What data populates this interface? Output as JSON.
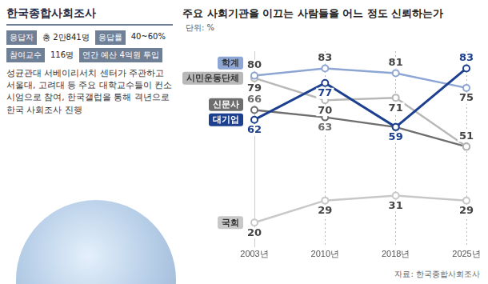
{
  "panel": {
    "title": "한국종합사회조사",
    "info_rows": [
      [
        "응답자",
        "총 2만841명",
        "응답률",
        "40~60%"
      ],
      [
        "참여교수",
        "116명",
        "연간 예산 4억원 투입"
      ]
    ],
    "description": "성균관대 서베이리서치 센터가 주관하고 서울대, 고려대 등 주요 대학교수들이 컨소시엄으로 참여, 한국갤럽을 통해 격년으로 한국 사회조사 진행"
  },
  "chart_data": {
    "type": "line",
    "title": "주요 사회기관을 이끄는 사람들을 어느 정도 신뢰하는가",
    "unit_label": "단위: %",
    "source": "자료: 한국종합사회조사",
    "categories": [
      "2003년",
      "2010년",
      "2018년",
      "2025년"
    ],
    "series": [
      {
        "name": "대기업",
        "color": "#1d3f8f",
        "values": [
          62,
          77,
          59,
          83
        ]
      },
      {
        "name": "학계",
        "color": "#8ea6d4",
        "values": [
          80,
          83,
          81,
          75
        ]
      },
      {
        "name": "시민운동단체",
        "color": "#b8b8b8",
        "values": [
          79,
          70,
          71,
          51
        ]
      },
      {
        "name": "신문사",
        "color": "#6e6e6e",
        "values": [
          66,
          63,
          59,
          51
        ]
      },
      {
        "name": "국회",
        "color": "#c8c8c8",
        "values": [
          20,
          29,
          31,
          29
        ]
      }
    ],
    "ylim": [
      10,
      90
    ],
    "tick_labels": "x",
    "grid": true,
    "data_labels": true,
    "legend": "left",
    "marker": "circle"
  }
}
